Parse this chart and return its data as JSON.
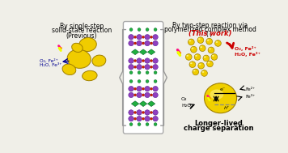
{
  "bg_color": "#f0efe8",
  "left_title_line1": "By single-step",
  "left_title_line2": "solid-state reaction",
  "left_subtitle": "(Previous)",
  "right_title_line1": "By two-step reaction via",
  "right_title_line2": "polymerized complex method",
  "right_subtitle": "This work",
  "bottom_text_line1": "Longer-lived",
  "bottom_text_line2": "charge separation",
  "left_o2_label": "O₂, Fe²⁺",
  "left_h2o_label": "H₂O, Fe³⁺",
  "right_o2_label": "O₂, Fe²⁺",
  "right_h2o_label": "H₂O, Fe³⁺",
  "bottom_o2": "O₂",
  "bottom_h2o": "H₂O",
  "bottom_h": "h⁺",
  "bottom_e": "e⁻",
  "right_fe2": "Fe²⁺",
  "right_fe3": "Fe³⁺",
  "yellow": "#f0cc00",
  "yellow_light": "#f8e840",
  "yellow_edge": "#a08000",
  "yellow_fill": "#e8c800",
  "purple": "#9040c0",
  "purple_edge": "#400080",
  "green_atom": "#20b040",
  "green_edge": "#006020",
  "red_atom": "#cc2000",
  "red_edge": "#800000",
  "dark_red": "#cc0000",
  "dark_blue": "#000090",
  "gray_brace": "#999999",
  "black": "#000000",
  "white": "#ffffff",
  "crystal_bg": "#ffffff"
}
